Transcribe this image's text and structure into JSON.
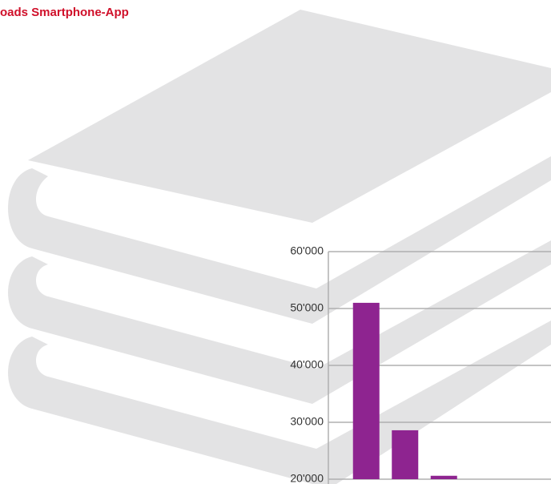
{
  "chart_data": {
    "type": "bar",
    "title": "oads Smartphone-App",
    "categories": [
      null,
      null,
      null
    ],
    "values": [
      51000,
      28600,
      20600
    ],
    "color": "#8e2490",
    "ylim": [
      20000,
      60000
    ],
    "yticks": [
      {
        "value": 20000,
        "label": "20'000"
      },
      {
        "value": 30000,
        "label": "30'000"
      },
      {
        "value": 40000,
        "label": "40'000"
      },
      {
        "value": 50000,
        "label": "50'000"
      },
      {
        "value": 60000,
        "label": "60'000"
      }
    ],
    "grid": true
  }
}
